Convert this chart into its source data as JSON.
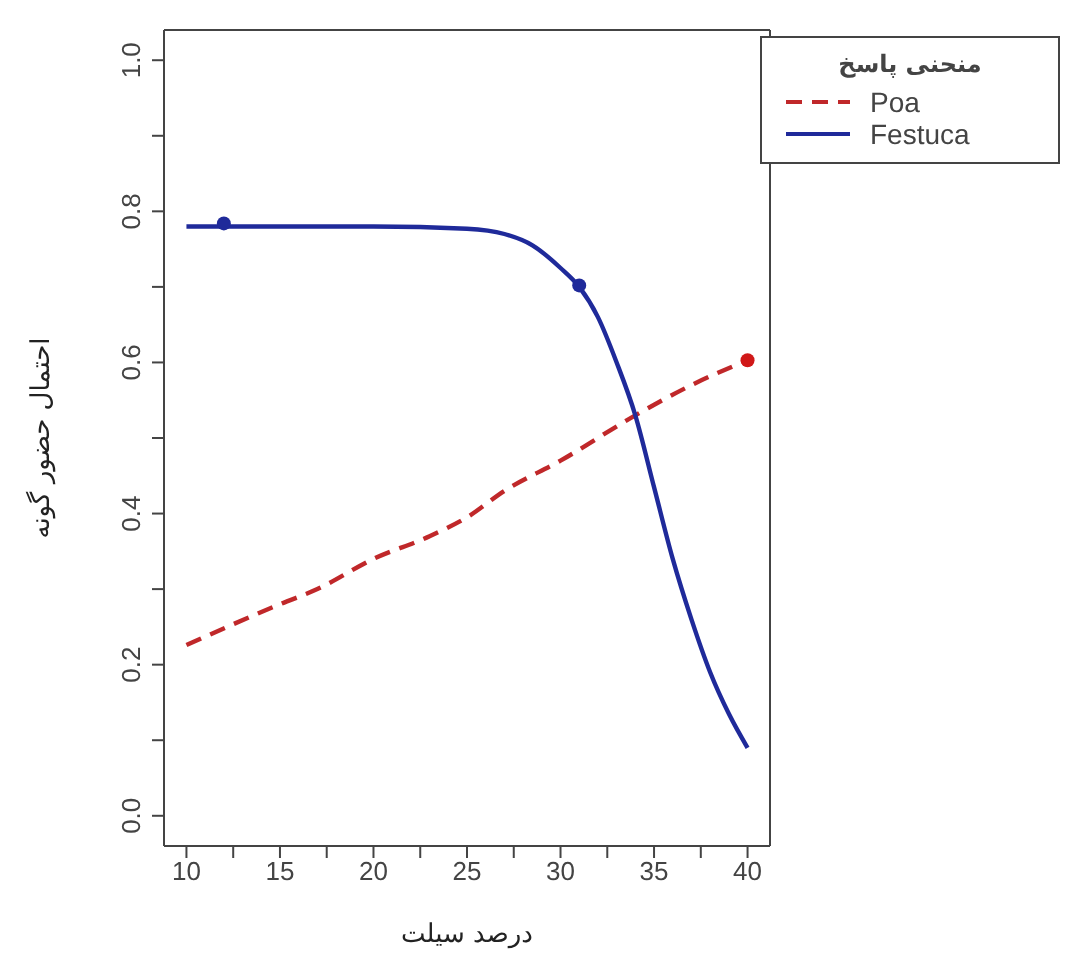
{
  "chart_data": {
    "type": "line",
    "xlabel": "درصد سیلت",
    "ylabel": "احتمال حضور گونه",
    "legend_title": "منحنی پاسخ",
    "legend": "top right",
    "grid": false,
    "marker": "none",
    "xlim": [
      8.8,
      41.2
    ],
    "ylim": [
      -0.04,
      1.04
    ],
    "xticks": [
      10,
      {
        "value": 12.5,
        "label": null
      },
      15,
      {
        "value": 17.5,
        "label": null
      },
      20,
      {
        "value": 22.5,
        "label": null
      },
      25,
      {
        "value": 27.5,
        "label": null
      },
      30,
      {
        "value": 32.5,
        "label": null
      },
      35,
      {
        "value": 37.5,
        "label": null
      },
      40
    ],
    "yticks": [
      {
        "value": 0,
        "label": "0.0"
      },
      {
        "value": 0.1,
        "label": null
      },
      0.2,
      {
        "value": 0.3,
        "label": null
      },
      0.4,
      {
        "value": 0.5,
        "label": null
      },
      0.6,
      {
        "value": 0.7,
        "label": null
      },
      0.8,
      {
        "value": 0.9,
        "label": null
      },
      {
        "value": 1,
        "label": "1.0"
      }
    ],
    "series": [
      {
        "name": "Poa",
        "color": "#c0282a",
        "line_style": "dashed",
        "x": [
          10,
          15,
          17,
          20,
          23,
          25,
          27,
          30,
          34,
          37,
          40
        ],
        "values": [
          0.226,
          0.28,
          0.3,
          0.34,
          0.37,
          0.395,
          0.43,
          0.47,
          0.53,
          0.57,
          0.603
        ]
      },
      {
        "name": "Festuca",
        "color": "#1f2a9a",
        "line_style": "solid",
        "x": [
          10,
          12,
          20,
          25,
          27,
          28.5,
          30,
          31,
          32,
          33,
          34,
          35,
          36,
          37,
          38,
          39,
          40
        ],
        "values": [
          0.78,
          0.78,
          0.78,
          0.777,
          0.77,
          0.755,
          0.725,
          0.7,
          0.66,
          0.6,
          0.53,
          0.435,
          0.34,
          0.26,
          0.19,
          0.135,
          0.09
        ]
      },
      {
        "type": "scatter",
        "color": "#1f2a9a",
        "marker": "circle",
        "x": [
          12,
          31
        ],
        "values": [
          0.784,
          0.702
        ]
      },
      {
        "type": "scatter",
        "color": "#d01818",
        "marker": "circle",
        "x": [
          40
        ],
        "values": [
          0.603
        ]
      }
    ]
  }
}
